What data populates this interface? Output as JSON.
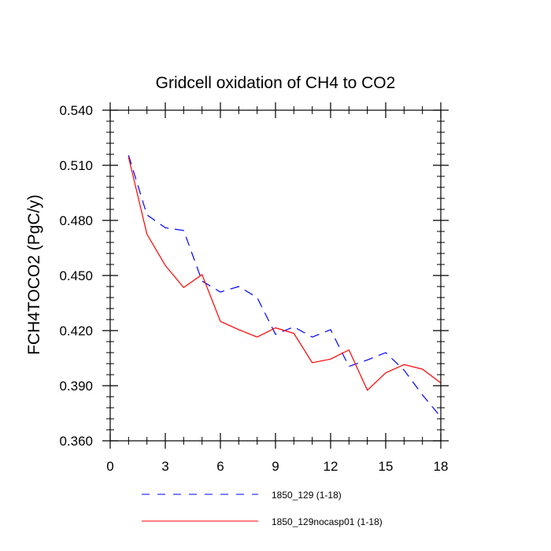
{
  "chart_data": {
    "type": "line",
    "title": "Gridcell oxidation of CH4 to CO2",
    "xlabel": "",
    "ylabel": "FCH4TOCO2  (PgC/y)",
    "xlim": [
      0,
      18
    ],
    "ylim": [
      0.36,
      0.54
    ],
    "xticks": [
      0,
      3,
      6,
      9,
      12,
      15,
      18
    ],
    "xtick_labels": [
      "0",
      "3",
      "6",
      "9",
      "12",
      "15",
      "18"
    ],
    "yticks": [
      0.36,
      0.39,
      0.42,
      0.45,
      0.48,
      0.51,
      0.54
    ],
    "ytick_labels": [
      "0.360",
      "0.390",
      "0.420",
      "0.450",
      "0.480",
      "0.510",
      "0.540"
    ],
    "grid": false,
    "legend_position": "bottom",
    "series": [
      {
        "name": "1850_129 (1-18)",
        "color": "#0000ff",
        "dash": "dashed",
        "x": [
          1,
          2,
          3,
          4,
          5,
          6,
          7,
          8,
          9,
          10,
          11,
          12,
          13,
          14,
          15,
          16,
          17,
          18
        ],
        "y": [
          0.5155,
          0.483,
          0.476,
          0.4745,
          0.447,
          0.441,
          0.444,
          0.438,
          0.418,
          0.422,
          0.4165,
          0.4205,
          0.4005,
          0.404,
          0.408,
          0.3985,
          0.385,
          0.373
        ]
      },
      {
        "name": "1850_129nocasp01 (1-18)",
        "color": "#ff0000",
        "dash": "solid",
        "x": [
          1,
          2,
          3,
          4,
          5,
          6,
          7,
          8,
          9,
          10,
          11,
          12,
          13,
          14,
          15,
          16,
          17,
          18
        ],
        "y": [
          0.5145,
          0.4725,
          0.4555,
          0.4435,
          0.4505,
          0.425,
          0.4205,
          0.4165,
          0.4215,
          0.4185,
          0.4025,
          0.4045,
          0.4095,
          0.3875,
          0.397,
          0.4015,
          0.399,
          0.3915
        ]
      }
    ]
  }
}
